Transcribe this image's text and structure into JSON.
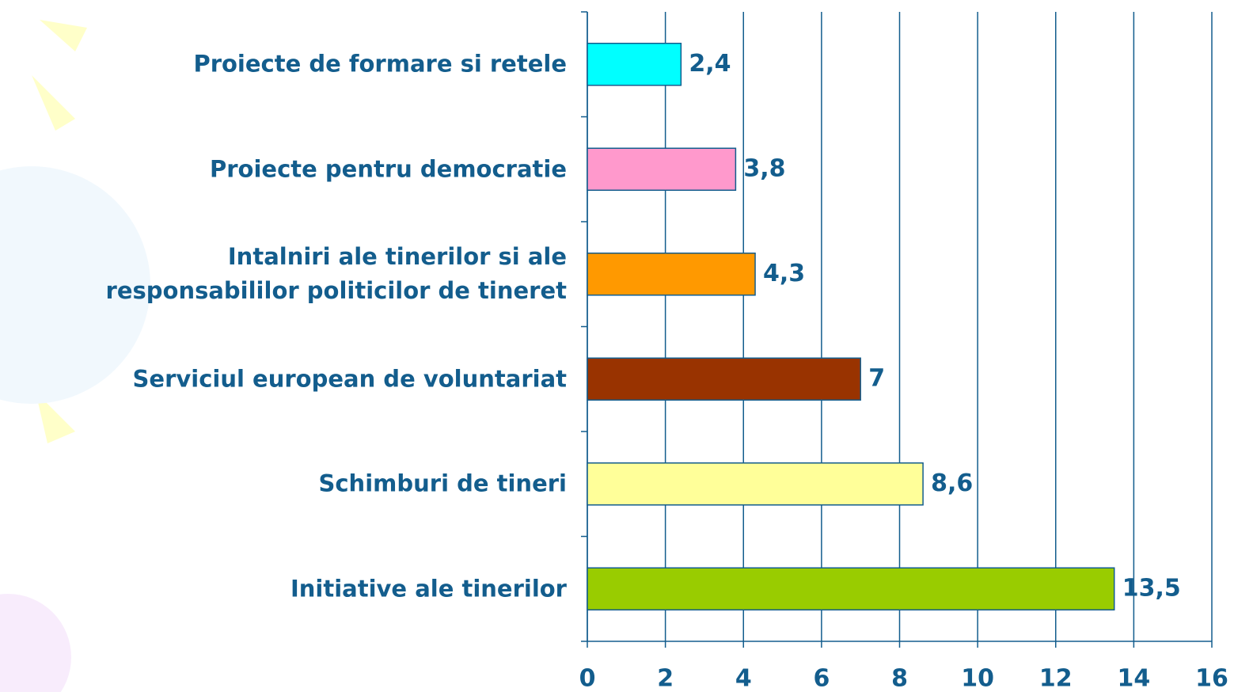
{
  "chart_data": {
    "type": "bar",
    "orientation": "horizontal",
    "categories": [
      "Proiecte de formare si retele",
      "Proiecte pentru democratie",
      "Intalniri ale tinerilor si ale\nresponsabililor politicilor de tineret",
      "Serviciul european de voluntariat",
      "Schimburi de tineri",
      "Initiative ale tinerilor"
    ],
    "values": [
      2.4,
      3.8,
      4.3,
      7,
      8.6,
      13.5
    ],
    "value_labels": [
      "2,4",
      "3,8",
      "4,3",
      "7",
      "8,6",
      "13,5"
    ],
    "colors": [
      "#00ffff",
      "#ff99cc",
      "#ff9900",
      "#993300",
      "#ffff99",
      "#99cc00"
    ],
    "xlim": [
      0,
      16
    ],
    "xticks": [
      0,
      2,
      4,
      6,
      8,
      10,
      12,
      14,
      16
    ],
    "grid": true
  }
}
